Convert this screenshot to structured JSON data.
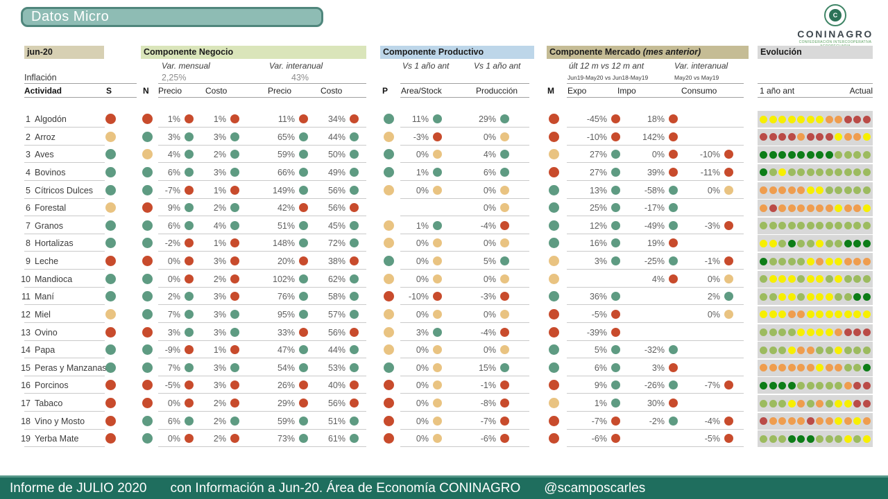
{
  "title": "Datos Micro",
  "logo": {
    "name": "CONINAGRO",
    "emblem_letter": "C",
    "tagline": "CONFEDERACIÓN INTERCOOPERATIVA AGROPECUARIA"
  },
  "footer": {
    "report": "Informe de JULIO 2020",
    "info": "con Información a Jun-20. Área de Economía CONINAGRO",
    "handle": "@scamposcarles"
  },
  "header": {
    "period": "jun-20",
    "inflation_label": "Inflación",
    "activity_label": "Actividad",
    "s_label": "S",
    "n_label": "N",
    "p_label": "P",
    "m_label": "M",
    "negocio": {
      "title": "Componente Negocio",
      "sub1": "Var. mensual",
      "sub1_value": "2,25%",
      "sub2": "Var. interanual",
      "sub2_value": "43%",
      "col1": "Precio",
      "col2": "Costo",
      "col3": "Precio",
      "col4": "Costo"
    },
    "productivo": {
      "title": "Componente Productivo",
      "sub1": "Vs 1 año ant",
      "sub2": "Vs 1 año ant",
      "col1": "Area/Stock",
      "col2": "Producción"
    },
    "mercado": {
      "title": "Componente Mercado",
      "title_note": "(mes anterior)",
      "sub1": "últ 12 m vs 12 m ant",
      "sub1b": "Jun19-May20 vs Jun18-May19",
      "sub2": "Var. interanual",
      "sub2b": "May20 vs May19",
      "col1": "Expo",
      "col2": "Impo",
      "col3": "Consumo"
    },
    "evolucion": {
      "title": "Evolución",
      "left": "1 año ant",
      "right": "Actual"
    }
  },
  "colors": {
    "dot_red": "#c84b2c",
    "dot_green": "#5e9b82",
    "dot_yellow": "#e9c381",
    "evo_yellow": "#f7ef00",
    "evo_orange": "#ef9d4e",
    "evo_red": "#ba4b47",
    "evo_dark_green": "#0d7d18",
    "evo_light_green": "#9cbb5f",
    "accent_teal": "#1f6e5e",
    "title_fill": "#8ebcb4",
    "bar_jun": "#d7d0b3",
    "bar_negocio": "#dae5ba",
    "bar_productivo": "#bdd6e9",
    "bar_mercado": "#c5bc95",
    "bar_evolucion": "#d9d9d9"
  },
  "rows": [
    {
      "num": "1",
      "name": "Algodón",
      "s": "R",
      "n": "R",
      "neg": [
        [
          "1%",
          "R"
        ],
        [
          "1%",
          "R"
        ],
        [
          "11%",
          "R"
        ],
        [
          "34%",
          "R"
        ]
      ],
      "p": "G",
      "prod": [
        [
          "11%",
          "G"
        ],
        [
          "29%",
          "G"
        ]
      ],
      "m": "R",
      "merc": [
        [
          "-45%",
          "R"
        ],
        [
          "18%",
          "R"
        ],
        null
      ],
      "evo": "yyyyyyyoorrr"
    },
    {
      "num": "2",
      "name": "Arroz",
      "s": "Y",
      "n": "G",
      "neg": [
        [
          "3%",
          "G"
        ],
        [
          "3%",
          "G"
        ],
        [
          "65%",
          "G"
        ],
        [
          "44%",
          "G"
        ]
      ],
      "p": "Y",
      "prod": [
        [
          "-3%",
          "R"
        ],
        [
          "0%",
          "Y"
        ]
      ],
      "m": "R",
      "merc": [
        [
          "-10%",
          "R"
        ],
        [
          "142%",
          "R"
        ],
        null
      ],
      "evo": "rrrrorrryooy"
    },
    {
      "num": "3",
      "name": "Aves",
      "s": "G",
      "n": "Y",
      "neg": [
        [
          "4%",
          "G"
        ],
        [
          "2%",
          "G"
        ],
        [
          "59%",
          "G"
        ],
        [
          "50%",
          "G"
        ]
      ],
      "p": "G",
      "prod": [
        [
          "0%",
          "Y"
        ],
        [
          "4%",
          "G"
        ]
      ],
      "m": "Y",
      "merc": [
        [
          "27%",
          "G"
        ],
        [
          "0%",
          "R"
        ],
        [
          "-10%",
          "R"
        ]
      ],
      "evo": "ggggggggllll"
    },
    {
      "num": "4",
      "name": "Bovinos",
      "s": "G",
      "n": "G",
      "neg": [
        [
          "6%",
          "G"
        ],
        [
          "3%",
          "G"
        ],
        [
          "66%",
          "G"
        ],
        [
          "49%",
          "G"
        ]
      ],
      "p": "G",
      "prod": [
        [
          "1%",
          "G"
        ],
        [
          "6%",
          "G"
        ]
      ],
      "m": "R",
      "merc": [
        [
          "27%",
          "G"
        ],
        [
          "39%",
          "R"
        ],
        [
          "-11%",
          "R"
        ]
      ],
      "evo": "glylllllllll"
    },
    {
      "num": "5",
      "name": "Cítricos Dulces",
      "s": "G",
      "n": "G",
      "neg": [
        [
          "-7%",
          "R"
        ],
        [
          "1%",
          "R"
        ],
        [
          "149%",
          "G"
        ],
        [
          "56%",
          "G"
        ]
      ],
      "p": "Y",
      "prod": [
        [
          "0%",
          "Y"
        ],
        [
          "0%",
          "Y"
        ]
      ],
      "m": "G",
      "merc": [
        [
          "13%",
          "G"
        ],
        [
          "-58%",
          "G"
        ],
        [
          "0%",
          "Y"
        ]
      ],
      "evo": "oooooyylllll"
    },
    {
      "num": "6",
      "name": "Forestal",
      "s": "Y",
      "n": "R",
      "neg": [
        [
          "9%",
          "G"
        ],
        [
          "2%",
          "G"
        ],
        [
          "42%",
          "R"
        ],
        [
          "56%",
          "R"
        ]
      ],
      "p": null,
      "prod": [
        null,
        [
          "0%",
          "Y"
        ]
      ],
      "m": "G",
      "merc": [
        [
          "25%",
          "G"
        ],
        [
          "-17%",
          "G"
        ],
        null
      ],
      "evo": "orooooooyooy"
    },
    {
      "num": "7",
      "name": "Granos",
      "s": "G",
      "n": "G",
      "neg": [
        [
          "6%",
          "G"
        ],
        [
          "4%",
          "G"
        ],
        [
          "51%",
          "G"
        ],
        [
          "45%",
          "G"
        ]
      ],
      "p": "Y",
      "prod": [
        [
          "1%",
          "G"
        ],
        [
          "-4%",
          "R"
        ]
      ],
      "m": "G",
      "merc": [
        [
          "12%",
          "G"
        ],
        [
          "-49%",
          "G"
        ],
        [
          "-3%",
          "R"
        ]
      ],
      "evo": "llllllllllll"
    },
    {
      "num": "8",
      "name": "Hortalizas",
      "s": "G",
      "n": "G",
      "neg": [
        [
          "-2%",
          "R"
        ],
        [
          "1%",
          "R"
        ],
        [
          "148%",
          "G"
        ],
        [
          "72%",
          "G"
        ]
      ],
      "p": "Y",
      "prod": [
        [
          "0%",
          "Y"
        ],
        [
          "0%",
          "Y"
        ]
      ],
      "m": "G",
      "merc": [
        [
          "16%",
          "G"
        ],
        [
          "19%",
          "R"
        ],
        null
      ],
      "evo": "yylgllyllggg"
    },
    {
      "num": "9",
      "name": "Leche",
      "s": "R",
      "n": "R",
      "neg": [
        [
          "0%",
          "R"
        ],
        [
          "3%",
          "R"
        ],
        [
          "20%",
          "R"
        ],
        [
          "38%",
          "R"
        ]
      ],
      "p": "G",
      "prod": [
        [
          "0%",
          "Y"
        ],
        [
          "5%",
          "G"
        ]
      ],
      "m": "Y",
      "merc": [
        [
          "3%",
          "G"
        ],
        [
          "-25%",
          "G"
        ],
        [
          "-1%",
          "R"
        ]
      ],
      "evo": "gllllyoyyooo"
    },
    {
      "num": "10",
      "name": "Mandioca",
      "s": "G",
      "n": "G",
      "neg": [
        [
          "0%",
          "R"
        ],
        [
          "2%",
          "R"
        ],
        [
          "102%",
          "G"
        ],
        [
          "62%",
          "G"
        ]
      ],
      "p": "Y",
      "prod": [
        [
          "0%",
          "Y"
        ],
        [
          "0%",
          "Y"
        ]
      ],
      "m": "Y",
      "merc": [
        null,
        [
          "4%",
          "R"
        ],
        [
          "0%",
          "Y"
        ]
      ],
      "evo": "lyyylyylylll"
    },
    {
      "num": "11",
      "name": "Maní",
      "s": "G",
      "n": "G",
      "neg": [
        [
          "2%",
          "G"
        ],
        [
          "3%",
          "R"
        ],
        [
          "76%",
          "G"
        ],
        [
          "58%",
          "G"
        ]
      ],
      "p": "R",
      "prod": [
        [
          "-10%",
          "R"
        ],
        [
          "-3%",
          "R"
        ]
      ],
      "m": "G",
      "merc": [
        [
          "36%",
          "G"
        ],
        null,
        [
          "2%",
          "G"
        ]
      ],
      "evo": "llyylyyyllgg"
    },
    {
      "num": "12",
      "name": "Miel",
      "s": "Y",
      "n": "G",
      "neg": [
        [
          "7%",
          "G"
        ],
        [
          "3%",
          "G"
        ],
        [
          "95%",
          "G"
        ],
        [
          "57%",
          "G"
        ]
      ],
      "p": "Y",
      "prod": [
        [
          "0%",
          "Y"
        ],
        [
          "0%",
          "Y"
        ]
      ],
      "m": "R",
      "merc": [
        [
          "-5%",
          "R"
        ],
        null,
        [
          "0%",
          "Y"
        ]
      ],
      "evo": "yyyooyyyyyyy"
    },
    {
      "num": "13",
      "name": "Ovino",
      "s": "R",
      "n": "R",
      "neg": [
        [
          "3%",
          "G"
        ],
        [
          "3%",
          "G"
        ],
        [
          "33%",
          "R"
        ],
        [
          "56%",
          "R"
        ]
      ],
      "p": "Y",
      "prod": [
        [
          "3%",
          "G"
        ],
        [
          "-4%",
          "R"
        ]
      ],
      "m": "R",
      "merc": [
        [
          "-39%",
          "R"
        ],
        null,
        null
      ],
      "evo": "llllyyyyorrr"
    },
    {
      "num": "14",
      "name": "Papa",
      "s": "G",
      "n": "G",
      "neg": [
        [
          "-9%",
          "R"
        ],
        [
          "1%",
          "R"
        ],
        [
          "47%",
          "G"
        ],
        [
          "44%",
          "G"
        ]
      ],
      "p": "Y",
      "prod": [
        [
          "0%",
          "Y"
        ],
        [
          "0%",
          "Y"
        ]
      ],
      "m": "G",
      "merc": [
        [
          "5%",
          "G"
        ],
        [
          "-32%",
          "G"
        ],
        null
      ],
      "evo": "lllyoollylll"
    },
    {
      "num": "15",
      "name": "Peras y Manzanas",
      "s": "G",
      "n": "G",
      "neg": [
        [
          "7%",
          "G"
        ],
        [
          "3%",
          "G"
        ],
        [
          "54%",
          "G"
        ],
        [
          "53%",
          "G"
        ]
      ],
      "p": "G",
      "prod": [
        [
          "0%",
          "Y"
        ],
        [
          "15%",
          "G"
        ]
      ],
      "m": "G",
      "merc": [
        [
          "6%",
          "G"
        ],
        [
          "3%",
          "R"
        ],
        null
      ],
      "evo": "ooooooyoollg"
    },
    {
      "num": "16",
      "name": "Porcinos",
      "s": "R",
      "n": "R",
      "neg": [
        [
          "-5%",
          "R"
        ],
        [
          "3%",
          "R"
        ],
        [
          "26%",
          "R"
        ],
        [
          "40%",
          "R"
        ]
      ],
      "p": "R",
      "prod": [
        [
          "0%",
          "Y"
        ],
        [
          "-1%",
          "R"
        ]
      ],
      "m": "R",
      "merc": [
        [
          "9%",
          "G"
        ],
        [
          "-26%",
          "G"
        ],
        [
          "-7%",
          "R"
        ]
      ],
      "evo": "gggglllllorr"
    },
    {
      "num": "17",
      "name": "Tabaco",
      "s": "R",
      "n": "R",
      "neg": [
        [
          "0%",
          "R"
        ],
        [
          "2%",
          "R"
        ],
        [
          "29%",
          "R"
        ],
        [
          "56%",
          "R"
        ]
      ],
      "p": "R",
      "prod": [
        [
          "0%",
          "Y"
        ],
        [
          "-8%",
          "R"
        ]
      ],
      "m": "Y",
      "merc": [
        [
          "1%",
          "G"
        ],
        [
          "30%",
          "R"
        ],
        null
      ],
      "evo": "lllyololyyrr"
    },
    {
      "num": "18",
      "name": "Vino y Mosto",
      "s": "R",
      "n": "G",
      "neg": [
        [
          "6%",
          "G"
        ],
        [
          "2%",
          "G"
        ],
        [
          "59%",
          "G"
        ],
        [
          "51%",
          "G"
        ]
      ],
      "p": "R",
      "prod": [
        [
          "0%",
          "Y"
        ],
        [
          "-7%",
          "R"
        ]
      ],
      "m": "R",
      "merc": [
        [
          "-7%",
          "R"
        ],
        [
          "-2%",
          "G"
        ],
        [
          "-4%",
          "R"
        ]
      ],
      "evo": "roooorooyoyo"
    },
    {
      "num": "19",
      "name": "Yerba Mate",
      "s": "R",
      "n": "G",
      "neg": [
        [
          "0%",
          "R"
        ],
        [
          "2%",
          "R"
        ],
        [
          "73%",
          "G"
        ],
        [
          "61%",
          "G"
        ]
      ],
      "p": "R",
      "prod": [
        [
          "0%",
          "Y"
        ],
        [
          "-6%",
          "R"
        ]
      ],
      "m": "R",
      "merc": [
        [
          "-6%",
          "R"
        ],
        null,
        [
          "-5%",
          "R"
        ]
      ],
      "evo": "lllggglllyly"
    }
  ]
}
